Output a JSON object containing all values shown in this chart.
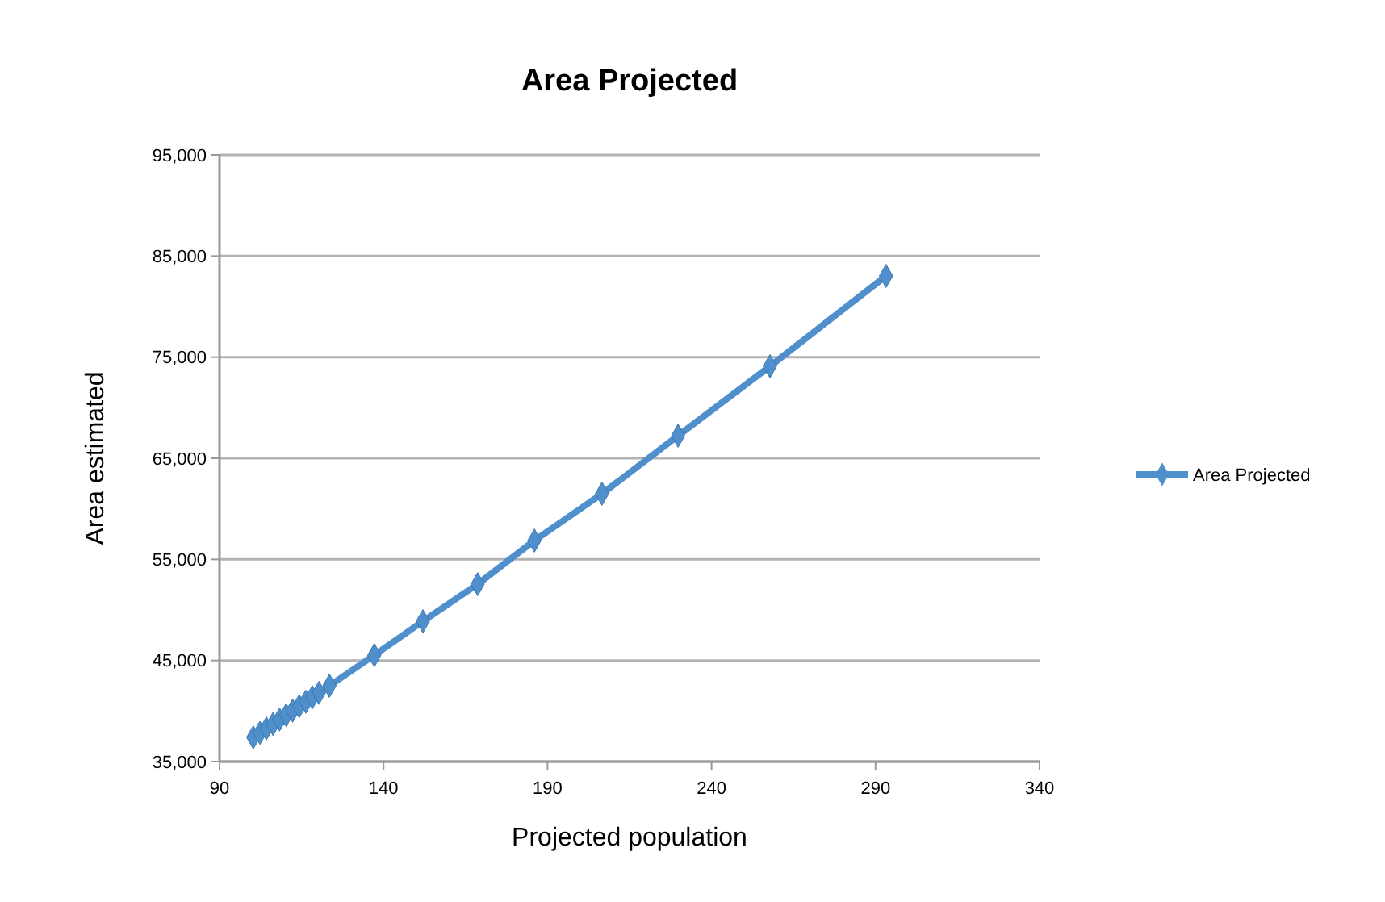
{
  "chart_data": {
    "type": "line",
    "title": "Area Projected",
    "xlabel": "Projected population",
    "ylabel": "Area estimated",
    "series": [
      {
        "name": "Area Projected",
        "color": "#4f8fcc",
        "x": [
          100.3,
          102.3,
          104.3,
          106.3,
          108.3,
          110.3,
          112.3,
          114.3,
          116.3,
          118.3,
          120.3,
          123.5,
          137.2,
          152.0,
          168.7,
          186.0,
          206.6,
          229.8,
          257.8,
          293.2
        ],
        "values": [
          37400,
          37840,
          38280,
          38720,
          39160,
          39600,
          40040,
          40480,
          40920,
          41360,
          41800,
          42500,
          45530,
          48880,
          52550,
          56860,
          61490,
          67230,
          74100,
          83030
        ]
      }
    ],
    "xlim": [
      90,
      340
    ],
    "xticks": [
      90,
      140,
      190,
      240,
      290,
      340
    ],
    "ylim": [
      35000,
      95000
    ],
    "yticks": [
      {
        "value": 35000,
        "label": "35,000"
      },
      {
        "value": 45000,
        "label": "45,000"
      },
      {
        "value": 55000,
        "label": "55,000"
      },
      {
        "value": 65000,
        "label": "65,000"
      },
      {
        "value": 75000,
        "label": "75,000"
      },
      {
        "value": 85000,
        "label": "85,000"
      },
      {
        "value": 95000,
        "label": "95,000"
      }
    ],
    "grid": "y",
    "legend": "right",
    "marker": "diamond",
    "line_style": "solid"
  }
}
